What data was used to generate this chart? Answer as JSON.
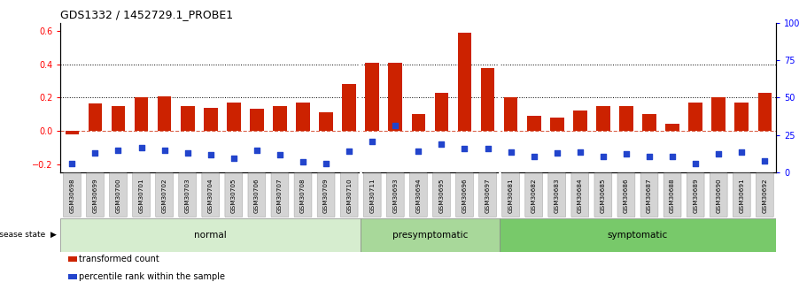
{
  "title": "GDS1332 / 1452729.1_PROBE1",
  "categories": [
    "GSM30698",
    "GSM30699",
    "GSM30700",
    "GSM30701",
    "GSM30702",
    "GSM30703",
    "GSM30704",
    "GSM30705",
    "GSM30706",
    "GSM30707",
    "GSM30708",
    "GSM30709",
    "GSM30710",
    "GSM30711",
    "GSM30693",
    "GSM30694",
    "GSM30695",
    "GSM30696",
    "GSM30697",
    "GSM30681",
    "GSM30682",
    "GSM30683",
    "GSM30684",
    "GSM30685",
    "GSM30686",
    "GSM30687",
    "GSM30688",
    "GSM30689",
    "GSM30690",
    "GSM30691",
    "GSM30692"
  ],
  "red_bars": [
    -0.02,
    0.165,
    0.15,
    0.2,
    0.21,
    0.15,
    0.14,
    0.17,
    0.135,
    0.15,
    0.17,
    0.11,
    0.28,
    0.41,
    0.41,
    0.1,
    0.23,
    0.59,
    0.38,
    0.2,
    0.09,
    0.08,
    0.12,
    0.15,
    0.15,
    0.1,
    0.04,
    0.17,
    0.2,
    0.17,
    0.23
  ],
  "blue_squares": [
    -0.195,
    -0.135,
    -0.115,
    -0.1,
    -0.115,
    -0.135,
    -0.145,
    -0.165,
    -0.115,
    -0.145,
    -0.185,
    -0.195,
    -0.125,
    -0.065,
    0.03,
    -0.125,
    -0.08,
    -0.105,
    -0.105,
    -0.13,
    -0.155,
    -0.135,
    -0.13,
    -0.155,
    -0.14,
    -0.155,
    -0.155,
    -0.195,
    -0.14,
    -0.13,
    -0.18
  ],
  "groups": [
    {
      "label": "normal",
      "start": 0,
      "end": 13,
      "color": "#d6edcf"
    },
    {
      "label": "presymptomatic",
      "start": 13,
      "end": 19,
      "color": "#a8d89a"
    },
    {
      "label": "symptomatic",
      "start": 19,
      "end": 31,
      "color": "#78c96a"
    }
  ],
  "group_boundaries": [
    13,
    19
  ],
  "ylim_left": [
    -0.25,
    0.65
  ],
  "ylim_right": [
    0,
    100
  ],
  "yticks_left": [
    -0.2,
    0.0,
    0.2,
    0.4,
    0.6
  ],
  "yticks_right": [
    0,
    25,
    50,
    75,
    100
  ],
  "dotted_lines": [
    0.2,
    0.4
  ],
  "bar_color": "#cc2200",
  "square_color": "#2244cc",
  "background_color": "#ffffff",
  "legend_items": [
    "transformed count",
    "percentile rank within the sample"
  ],
  "disease_state_label": "disease state"
}
